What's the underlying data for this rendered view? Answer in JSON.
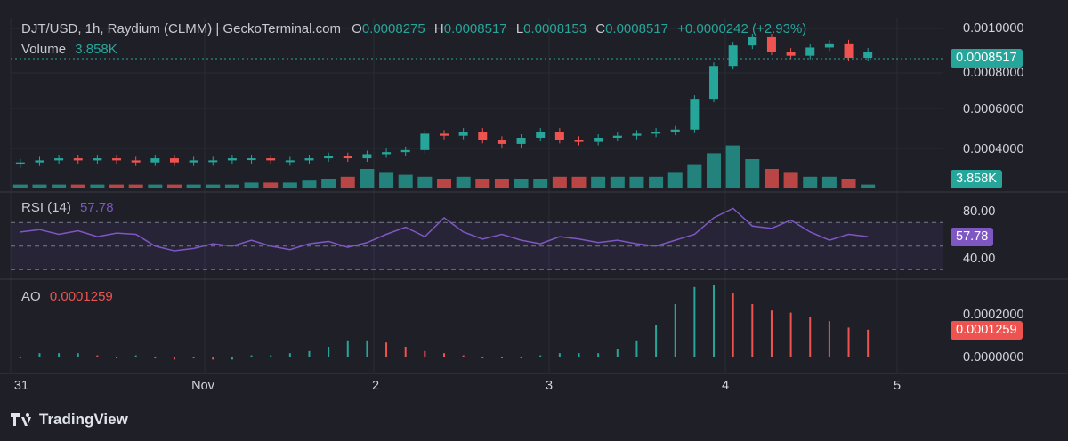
{
  "header": {
    "pair": "DJT/USD, 1h, Raydium (CLMM) | GeckoTerminal.com",
    "o_label": "O",
    "o_value": "0.0008275",
    "h_label": "H",
    "h_value": "0.0008517",
    "l_label": "L",
    "l_value": "0.0008153",
    "c_label": "C",
    "c_value": "0.0008517",
    "change": "+0.0000242 (+2.93%)",
    "volume_label": "Volume",
    "volume_value": "3.858K"
  },
  "panes": {
    "rsi_label": "RSI (14)",
    "rsi_value": "57.78",
    "ao_label": "AO",
    "ao_value": "0.0001259"
  },
  "tags": {
    "price": "0.0008517",
    "volume": "3.858K",
    "rsi": "57.78",
    "ao": "0.0001259"
  },
  "branding": {
    "name": "TradingView"
  },
  "colors": {
    "up": "#26a69a",
    "down": "#ef5350",
    "rsi": "#7e57c2",
    "bg": "#1e1f27"
  },
  "chart_data": [
    {
      "type": "candlestick",
      "title": "DJT/USD, 1h",
      "x_ticks": [
        "31",
        "Nov",
        "2",
        "3",
        "4",
        "5"
      ],
      "y_ticks": [
        "0.0004000",
        "0.0006000",
        "0.0008000",
        "0.0010000"
      ],
      "last_price": 0.0008517,
      "series": [
        {
          "name": "Price (close, sampled)",
          "values": [
            0.00031,
            0.00032,
            0.00033,
            0.00032,
            0.00033,
            0.00032,
            0.00031,
            0.00033,
            0.00031,
            0.00032,
            0.00032,
            0.00033,
            0.00033,
            0.00032,
            0.00032,
            0.00033,
            0.00034,
            0.00033,
            0.00035,
            0.00036,
            0.00037,
            0.00045,
            0.00044,
            0.00046,
            0.00042,
            0.0004,
            0.00043,
            0.00046,
            0.00042,
            0.00041,
            0.00043,
            0.00044,
            0.00045,
            0.00046,
            0.00047,
            0.00062,
            0.00078,
            0.00088,
            0.00092,
            0.00085,
            0.00083,
            0.00087,
            0.00089,
            0.00082,
            0.00085
          ]
        }
      ]
    },
    {
      "type": "bar",
      "title": "Volume",
      "last_value": "3.858K",
      "series": [
        {
          "name": "Volume (relative)",
          "values": [
            2,
            2,
            2,
            2,
            2,
            2,
            2,
            2,
            2,
            2,
            2,
            2,
            3,
            3,
            3,
            4,
            5,
            6,
            10,
            8,
            7,
            6,
            5,
            6,
            5,
            5,
            5,
            5,
            6,
            6,
            6,
            6,
            6,
            6,
            8,
            12,
            18,
            22,
            15,
            10,
            8,
            6,
            6,
            5,
            2
          ]
        }
      ]
    },
    {
      "type": "line",
      "title": "RSI (14)",
      "y_ticks": [
        "40.00",
        "80.00"
      ],
      "bands": [
        70,
        30
      ],
      "last_value": 57.78,
      "series": [
        {
          "name": "RSI",
          "values": [
            62,
            64,
            60,
            63,
            58,
            61,
            60,
            50,
            46,
            48,
            52,
            50,
            55,
            50,
            47,
            52,
            54,
            49,
            53,
            60,
            66,
            58,
            74,
            62,
            56,
            60,
            55,
            52,
            58,
            56,
            53,
            55,
            52,
            50,
            55,
            60,
            74,
            82,
            67,
            65,
            72,
            62,
            55,
            60,
            58
          ]
        }
      ]
    },
    {
      "type": "bar",
      "title": "AO",
      "y_ticks": [
        "0.0000000",
        "0.0002000"
      ],
      "last_value": 0.0001259,
      "series": [
        {
          "name": "AO",
          "values": [
            0.0,
            2e-05,
            2e-05,
            2e-05,
            1e-05,
            0.0,
            1e-05,
            0.0,
            -1e-05,
            0.0,
            -1e-05,
            -1e-05,
            1e-05,
            1e-05,
            2e-05,
            3e-05,
            5e-05,
            8e-05,
            8e-05,
            7e-05,
            5e-05,
            3e-05,
            2e-05,
            1e-05,
            0.0,
            0.0,
            0.0,
            1e-05,
            2e-05,
            2e-05,
            2e-05,
            4e-05,
            8e-05,
            0.00015,
            0.00025,
            0.00033,
            0.00034,
            0.0003,
            0.00025,
            0.00022,
            0.00021,
            0.00019,
            0.00017,
            0.00014,
            0.00013
          ]
        }
      ]
    }
  ]
}
